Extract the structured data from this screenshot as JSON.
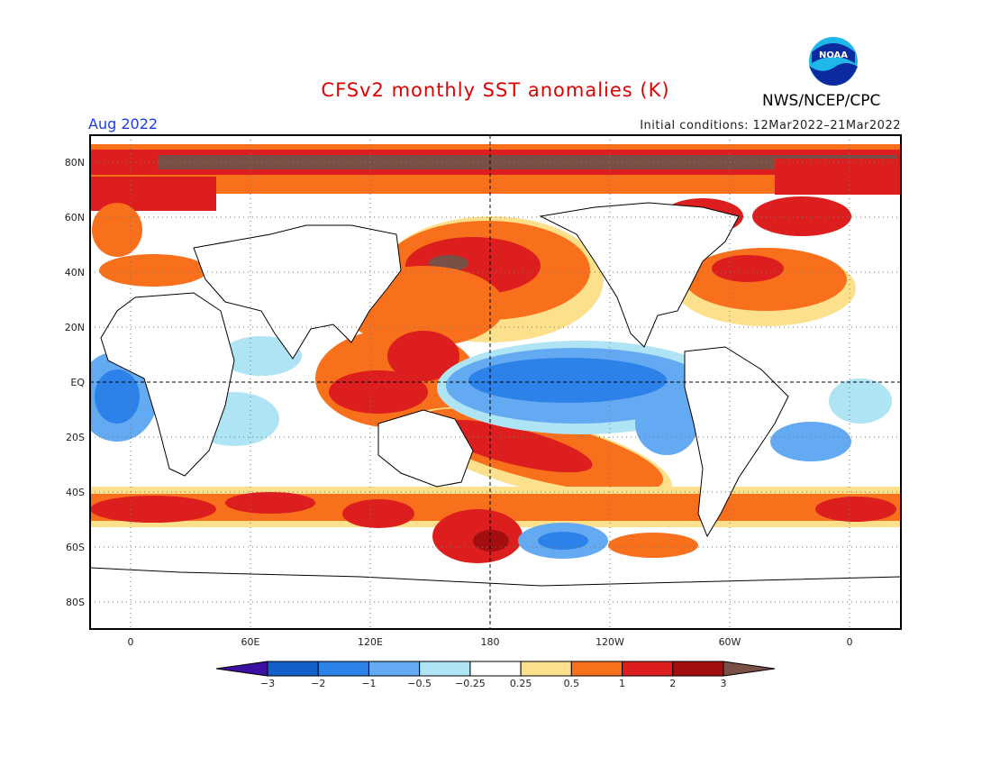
{
  "title": "CFSv2 monthly SST anomalies (K)",
  "month": "Aug 2022",
  "initial_conditions": "Initial conditions: 12Mar2022–21Mar2022",
  "agency": "NWS/NCEP/CPC",
  "logo_text": "NOAA",
  "lat_labels": [
    "80N",
    "60N",
    "40N",
    "20N",
    "EQ",
    "20S",
    "40S",
    "60S",
    "80S"
  ],
  "lon_labels": [
    "0",
    "60E",
    "120E",
    "180",
    "120W",
    "60W",
    "0"
  ],
  "colorbar": {
    "labels": [
      "−3",
      "−2",
      "−1",
      "−0.5",
      "−0.25",
      "0.25",
      "0.5",
      "1",
      "2",
      "3"
    ],
    "colors": [
      "#3c10a0",
      "#1460c8",
      "#2c82e8",
      "#64aaf2",
      "#aee4f4",
      "#ffffff",
      "#fce08c",
      "#f8701c",
      "#dc1e1e",
      "#a50e0e",
      "#7a5046"
    ]
  }
}
